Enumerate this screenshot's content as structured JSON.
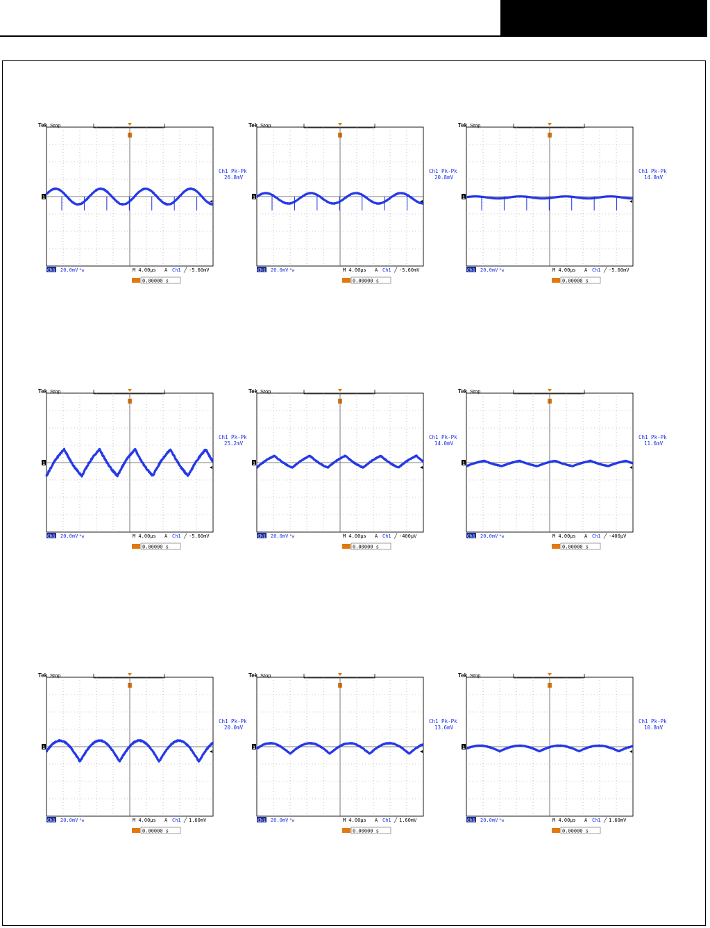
{
  "colors": {
    "trace": "#1a2ee6",
    "accent": "#e07a10",
    "grid": "#9a9a9a",
    "ink": "#000000"
  },
  "scope_text": {
    "brand": "Tek",
    "state": "Stop",
    "ch_label": "Ch1",
    "volts_div": "20.0mV",
    "bw_symbol": "ᴮw",
    "time_div": "M 4.00µs",
    "trig_mode": "A",
    "trig_src": "Ch1",
    "trig_delay": "0.00000 s",
    "measure_label": "Ch1 Pk-Pk",
    "ground_marker": "1"
  },
  "chart_data": [
    {
      "type": "line",
      "row": 1,
      "col": 1,
      "measurement": "26.8mV",
      "trigger_level": "-5.60mV",
      "trigger_slope": "falling",
      "wave": {
        "periods": 3.7,
        "amplitude_div": 0.45,
        "offset_div": 0.0,
        "spikes": true,
        "noise": 0.04,
        "shape": "sine"
      }
    },
    {
      "type": "line",
      "row": 1,
      "col": 2,
      "measurement": "20.8mV",
      "trigger_level": "-5.60mV",
      "trigger_slope": "falling",
      "wave": {
        "periods": 3.7,
        "amplitude_div": 0.3,
        "offset_div": -0.1,
        "spikes": true,
        "noise": 0.04,
        "shape": "sine"
      }
    },
    {
      "type": "line",
      "row": 1,
      "col": 3,
      "measurement": "14.8mV",
      "trigger_level": "-5.60mV",
      "trigger_slope": "falling",
      "wave": {
        "periods": 3.7,
        "amplitude_div": 0.06,
        "offset_div": -0.05,
        "spikes": true,
        "noise": 0.06,
        "shape": "sine"
      }
    },
    {
      "type": "line",
      "row": 2,
      "col": 1,
      "measurement": "25.2mV",
      "trigger_level": "-5.60mV",
      "trigger_slope": "falling",
      "wave": {
        "periods": 4.7,
        "amplitude_div": 0.9,
        "offset_div": 0.0,
        "spikes": false,
        "noise": 0.05,
        "shape": "tri"
      }
    },
    {
      "type": "line",
      "row": 2,
      "col": 2,
      "measurement": "14.0mV",
      "trigger_level": "-400µV",
      "trigger_slope": "rising",
      "wave": {
        "periods": 4.7,
        "amplitude_div": 0.4,
        "offset_div": 0.05,
        "spikes": false,
        "noise": 0.05,
        "shape": "tri"
      }
    },
    {
      "type": "line",
      "row": 2,
      "col": 3,
      "measurement": "11.6mV",
      "trigger_level": "-400µV",
      "trigger_slope": "rising",
      "wave": {
        "periods": 4.7,
        "amplitude_div": 0.18,
        "offset_div": -0.05,
        "spikes": false,
        "noise": 0.07,
        "shape": "tri"
      }
    },
    {
      "type": "line",
      "row": 3,
      "col": 1,
      "measurement": "20.0mV",
      "trigger_level": "1.60mV",
      "trigger_slope": "rising",
      "wave": {
        "periods": 4.2,
        "amplitude_div": 0.6,
        "offset_div": -0.25,
        "spikes": false,
        "noise": 0.05,
        "shape": "scallop"
      }
    },
    {
      "type": "line",
      "row": 3,
      "col": 2,
      "measurement": "13.6mV",
      "trigger_level": "1.60mV",
      "trigger_slope": "rising",
      "wave": {
        "periods": 4.2,
        "amplitude_div": 0.3,
        "offset_div": -0.1,
        "spikes": false,
        "noise": 0.06,
        "shape": "scallop"
      }
    },
    {
      "type": "line",
      "row": 3,
      "col": 3,
      "measurement": "10.8mV",
      "trigger_level": "1.60mV",
      "trigger_slope": "rising",
      "wave": {
        "periods": 4.2,
        "amplitude_div": 0.16,
        "offset_div": -0.1,
        "spikes": false,
        "noise": 0.08,
        "shape": "scallop"
      }
    }
  ]
}
